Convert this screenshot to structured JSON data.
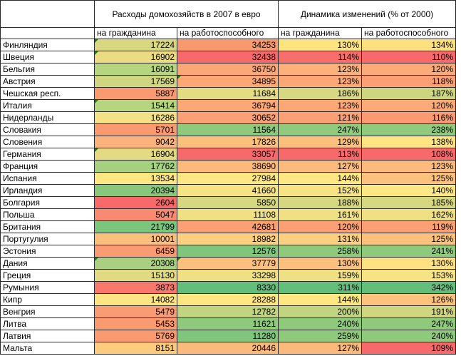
{
  "header": {
    "group_spending": "Расходы домохозяйств в 2007 в евро",
    "group_dynamics": "Динамика изменений (% от 2000)",
    "per_citizen": "на гражданина",
    "per_worker": "на работоспособного"
  },
  "rows": [
    {
      "country": "Финляндия",
      "spend_citizen": "17224",
      "spend_worker": "34253",
      "dyn_citizen": "130%",
      "dyn_worker": "134%",
      "colors": [
        "#ddd882",
        "#d9d880",
        "#f99a6e",
        "#fde47f",
        "#ffe07f"
      ],
      "flags": [
        false,
        true,
        false,
        false,
        false
      ]
    },
    {
      "country": "Швеция",
      "spend_citizen": "16902",
      "spend_worker": "32438",
      "dyn_citizen": "114%",
      "dyn_worker": "110%",
      "colors": [
        "#e6dc84",
        "#ebdb83",
        "#f8696b",
        "#f86e6c",
        "#f8696b"
      ],
      "flags": [
        false,
        true,
        false,
        false,
        false
      ]
    },
    {
      "country": "Бельгия",
      "spend_citizen": "16091",
      "spend_worker": "36750",
      "dyn_citizen": "123%",
      "dyn_worker": "120%",
      "colors": [
        "#f0e084",
        "#b5d57f",
        "#fba876",
        "#fcb07a",
        "#fcaa77"
      ],
      "flags": [
        false,
        false,
        false,
        false,
        false
      ]
    },
    {
      "country": "Австрия",
      "spend_citizen": "17569",
      "spend_worker": "34895",
      "dyn_citizen": "123%",
      "dyn_worker": "118%",
      "colors": [
        "#d6d681",
        "#d0d680",
        "#fba876",
        "#fba876",
        "#fba074"
      ],
      "flags": [
        true,
        false,
        true,
        false,
        false
      ]
    },
    {
      "country": "Чешская респ.",
      "spend_citizen": "5887",
      "spend_worker": "11684",
      "dyn_citizen": "186%",
      "dyn_worker": "187%",
      "colors": [
        "#fa9a71",
        "#fa9a71",
        "#e2dc83",
        "#d7d881",
        "#cdd67f"
      ],
      "flags": [
        false,
        false,
        false,
        false,
        false
      ]
    },
    {
      "country": "Италия",
      "spend_citizen": "15414",
      "spend_worker": "36794",
      "dyn_citizen": "123%",
      "dyn_worker": "120%",
      "colors": [
        "#f9e586",
        "#b5d57f",
        "#fba876",
        "#fba876",
        "#fcaa77"
      ],
      "flags": [
        false,
        true,
        false,
        false,
        false
      ]
    },
    {
      "country": "Нидерланды",
      "spend_citizen": "16286",
      "spend_worker": "30652",
      "dyn_citizen": "121%",
      "dyn_worker": "116%",
      "colors": [
        "#f0e084",
        "#f4e185",
        "#fba074",
        "#fba074",
        "#fb9972"
      ],
      "flags": [
        false,
        false,
        false,
        false,
        false
      ]
    },
    {
      "country": "Словакия",
      "spend_citizen": "5701",
      "spend_worker": "11564",
      "dyn_citizen": "247%",
      "dyn_worker": "238%",
      "colors": [
        "#fa9a71",
        "#fa9a71",
        "#8ec97c",
        "#8fca7d",
        "#8fca7d"
      ],
      "flags": [
        false,
        false,
        false,
        false,
        false
      ]
    },
    {
      "country": "Словения",
      "spend_citizen": "9042",
      "spend_worker": "17826",
      "dyn_citizen": "129%",
      "dyn_worker": "138%",
      "colors": [
        "#fcb27b",
        "#fcb27b",
        "#fcc07d",
        "#fcc07d",
        "#ffe581"
      ],
      "flags": [
        false,
        false,
        false,
        false,
        false
      ]
    },
    {
      "country": "Германия",
      "spend_citizen": "16904",
      "spend_worker": "33057",
      "dyn_citizen": "113%",
      "dyn_worker": "108%",
      "colors": [
        "#e6dc84",
        "#e3da83",
        "#f8696b",
        "#f8696b",
        "#f8696b"
      ],
      "flags": [
        false,
        true,
        false,
        false,
        false
      ]
    },
    {
      "country": "Франция",
      "spend_citizen": "17762",
      "spend_worker": "38690",
      "dyn_citizen": "127%",
      "dyn_worker": "123%",
      "colors": [
        "#d3d581",
        "#a4d07f",
        "#fcb97c",
        "#fcbb7c",
        "#fcbb7c"
      ],
      "flags": [
        false,
        false,
        false,
        false,
        false
      ]
    },
    {
      "country": "Испания",
      "spend_citizen": "13534",
      "spend_worker": "27984",
      "dyn_citizen": "144%",
      "dyn_worker": "125%",
      "colors": [
        "#fee683",
        "#fee683",
        "#fee683",
        "#fee683",
        "#fcc17d"
      ],
      "flags": [
        false,
        false,
        false,
        false,
        false
      ]
    },
    {
      "country": "Ирландия",
      "spend_citizen": "20394",
      "spend_worker": "41660",
      "dyn_citizen": "152%",
      "dyn_worker": "140%",
      "colors": [
        "#8cc97c",
        "#88c87c",
        "#f5e384",
        "#f5e384",
        "#ffe784"
      ],
      "flags": [
        false,
        false,
        false,
        false,
        false
      ]
    },
    {
      "country": "Болгария",
      "spend_citizen": "2604",
      "spend_worker": "5850",
      "dyn_citizen": "188%",
      "dyn_worker": "185%",
      "colors": [
        "#f8696b",
        "#f8696b",
        "#d5d881",
        "#d5d881",
        "#d5d881"
      ],
      "flags": [
        false,
        false,
        false,
        false,
        false
      ]
    },
    {
      "country": "Польша",
      "spend_citizen": "5047",
      "spend_worker": "11108",
      "dyn_citizen": "161%",
      "dyn_worker": "162%",
      "colors": [
        "#f98970",
        "#f98970",
        "#eee083",
        "#eee083",
        "#eee083"
      ],
      "flags": [
        false,
        false,
        false,
        false,
        false
      ]
    },
    {
      "country": "Британия",
      "spend_citizen": "21799",
      "spend_worker": "42681",
      "dyn_citizen": "120%",
      "dyn_worker": "119%",
      "colors": [
        "#63be7b",
        "#7bc57c",
        "#fba074",
        "#fba074",
        "#fba074"
      ],
      "flags": [
        false,
        false,
        false,
        false,
        false
      ]
    },
    {
      "country": "Португулия",
      "spend_citizen": "10001",
      "spend_worker": "18982",
      "dyn_citizen": "131%",
      "dyn_worker": "125%",
      "colors": [
        "#fdc27e",
        "#fcc07d",
        "#fdd07f",
        "#fdd07f",
        "#fcc17d"
      ],
      "flags": [
        false,
        false,
        false,
        false,
        false
      ]
    },
    {
      "country": "Эстония",
      "spend_citizen": "6459",
      "spend_worker": "12576",
      "dyn_citizen": "258%",
      "dyn_worker": "241%",
      "colors": [
        "#fa9c73",
        "#fa9c73",
        "#7fc67c",
        "#8ec97c",
        "#8ec97c"
      ],
      "flags": [
        false,
        false,
        false,
        false,
        false
      ]
    },
    {
      "country": "Дания",
      "spend_citizen": "20308",
      "spend_worker": "37779",
      "dyn_citizen": "130%",
      "dyn_worker": "130%",
      "colors": [
        "#90ca7c",
        "#a9d07e",
        "#fcc07d",
        "#fcc07d",
        "#fee282"
      ],
      "flags": [
        true,
        true,
        true,
        false,
        false
      ]
    },
    {
      "country": "Греция",
      "spend_citizen": "15130",
      "spend_worker": "33298",
      "dyn_citizen": "159%",
      "dyn_worker": "153%",
      "colors": [
        "#ffe783",
        "#e1da83",
        "#eee083",
        "#eee083",
        "#f5e384"
      ],
      "flags": [
        false,
        false,
        false,
        false,
        false
      ]
    },
    {
      "country": "Румыния",
      "spend_citizen": "3873",
      "spend_worker": "8330",
      "dyn_citizen": "311%",
      "dyn_worker": "342%",
      "colors": [
        "#f87a6e",
        "#f8786e",
        "#63be7b",
        "#63be7b",
        "#63be7b"
      ],
      "flags": [
        false,
        false,
        false,
        false,
        false
      ]
    },
    {
      "country": "Кипр",
      "spend_citizen": "14082",
      "spend_worker": "28288",
      "dyn_citizen": "144%",
      "dyn_worker": "126%",
      "colors": [
        "#ffe683",
        "#fde583",
        "#fee683",
        "#fee683",
        "#fdc27e"
      ],
      "flags": [
        false,
        false,
        false,
        false,
        false
      ]
    },
    {
      "country": "Венгрия",
      "spend_citizen": "5479",
      "spend_worker": "12782",
      "dyn_citizen": "200%",
      "dyn_worker": "191%",
      "colors": [
        "#f98970",
        "#fa9c73",
        "#c1d47f",
        "#c1d47f",
        "#d0d680"
      ],
      "flags": [
        false,
        false,
        false,
        false,
        false
      ]
    },
    {
      "country": "Литва",
      "spend_citizen": "5453",
      "spend_worker": "11621",
      "dyn_citizen": "240%",
      "dyn_worker": "247%",
      "colors": [
        "#f98970",
        "#fa9a71",
        "#8ec97c",
        "#8ec97c",
        "#8ec97c"
      ],
      "flags": [
        false,
        false,
        false,
        false,
        false
      ]
    },
    {
      "country": "Латвия",
      "spend_citizen": "5769",
      "spend_worker": "11280",
      "dyn_citizen": "259%",
      "dyn_worker": "240%",
      "colors": [
        "#fa9a71",
        "#fa9a71",
        "#7fc67c",
        "#8ec97c",
        "#8ec97c"
      ],
      "flags": [
        false,
        false,
        false,
        false,
        false
      ]
    },
    {
      "country": "Мальта",
      "spend_citizen": "8151",
      "spend_worker": "20446",
      "dyn_citizen": "127%",
      "dyn_worker": "109%",
      "colors": [
        "#fcb27b",
        "#fdcb7e",
        "#fcb97c",
        "#fcb97c",
        "#f8696b"
      ],
      "flags": [
        false,
        false,
        false,
        false,
        false
      ]
    }
  ]
}
